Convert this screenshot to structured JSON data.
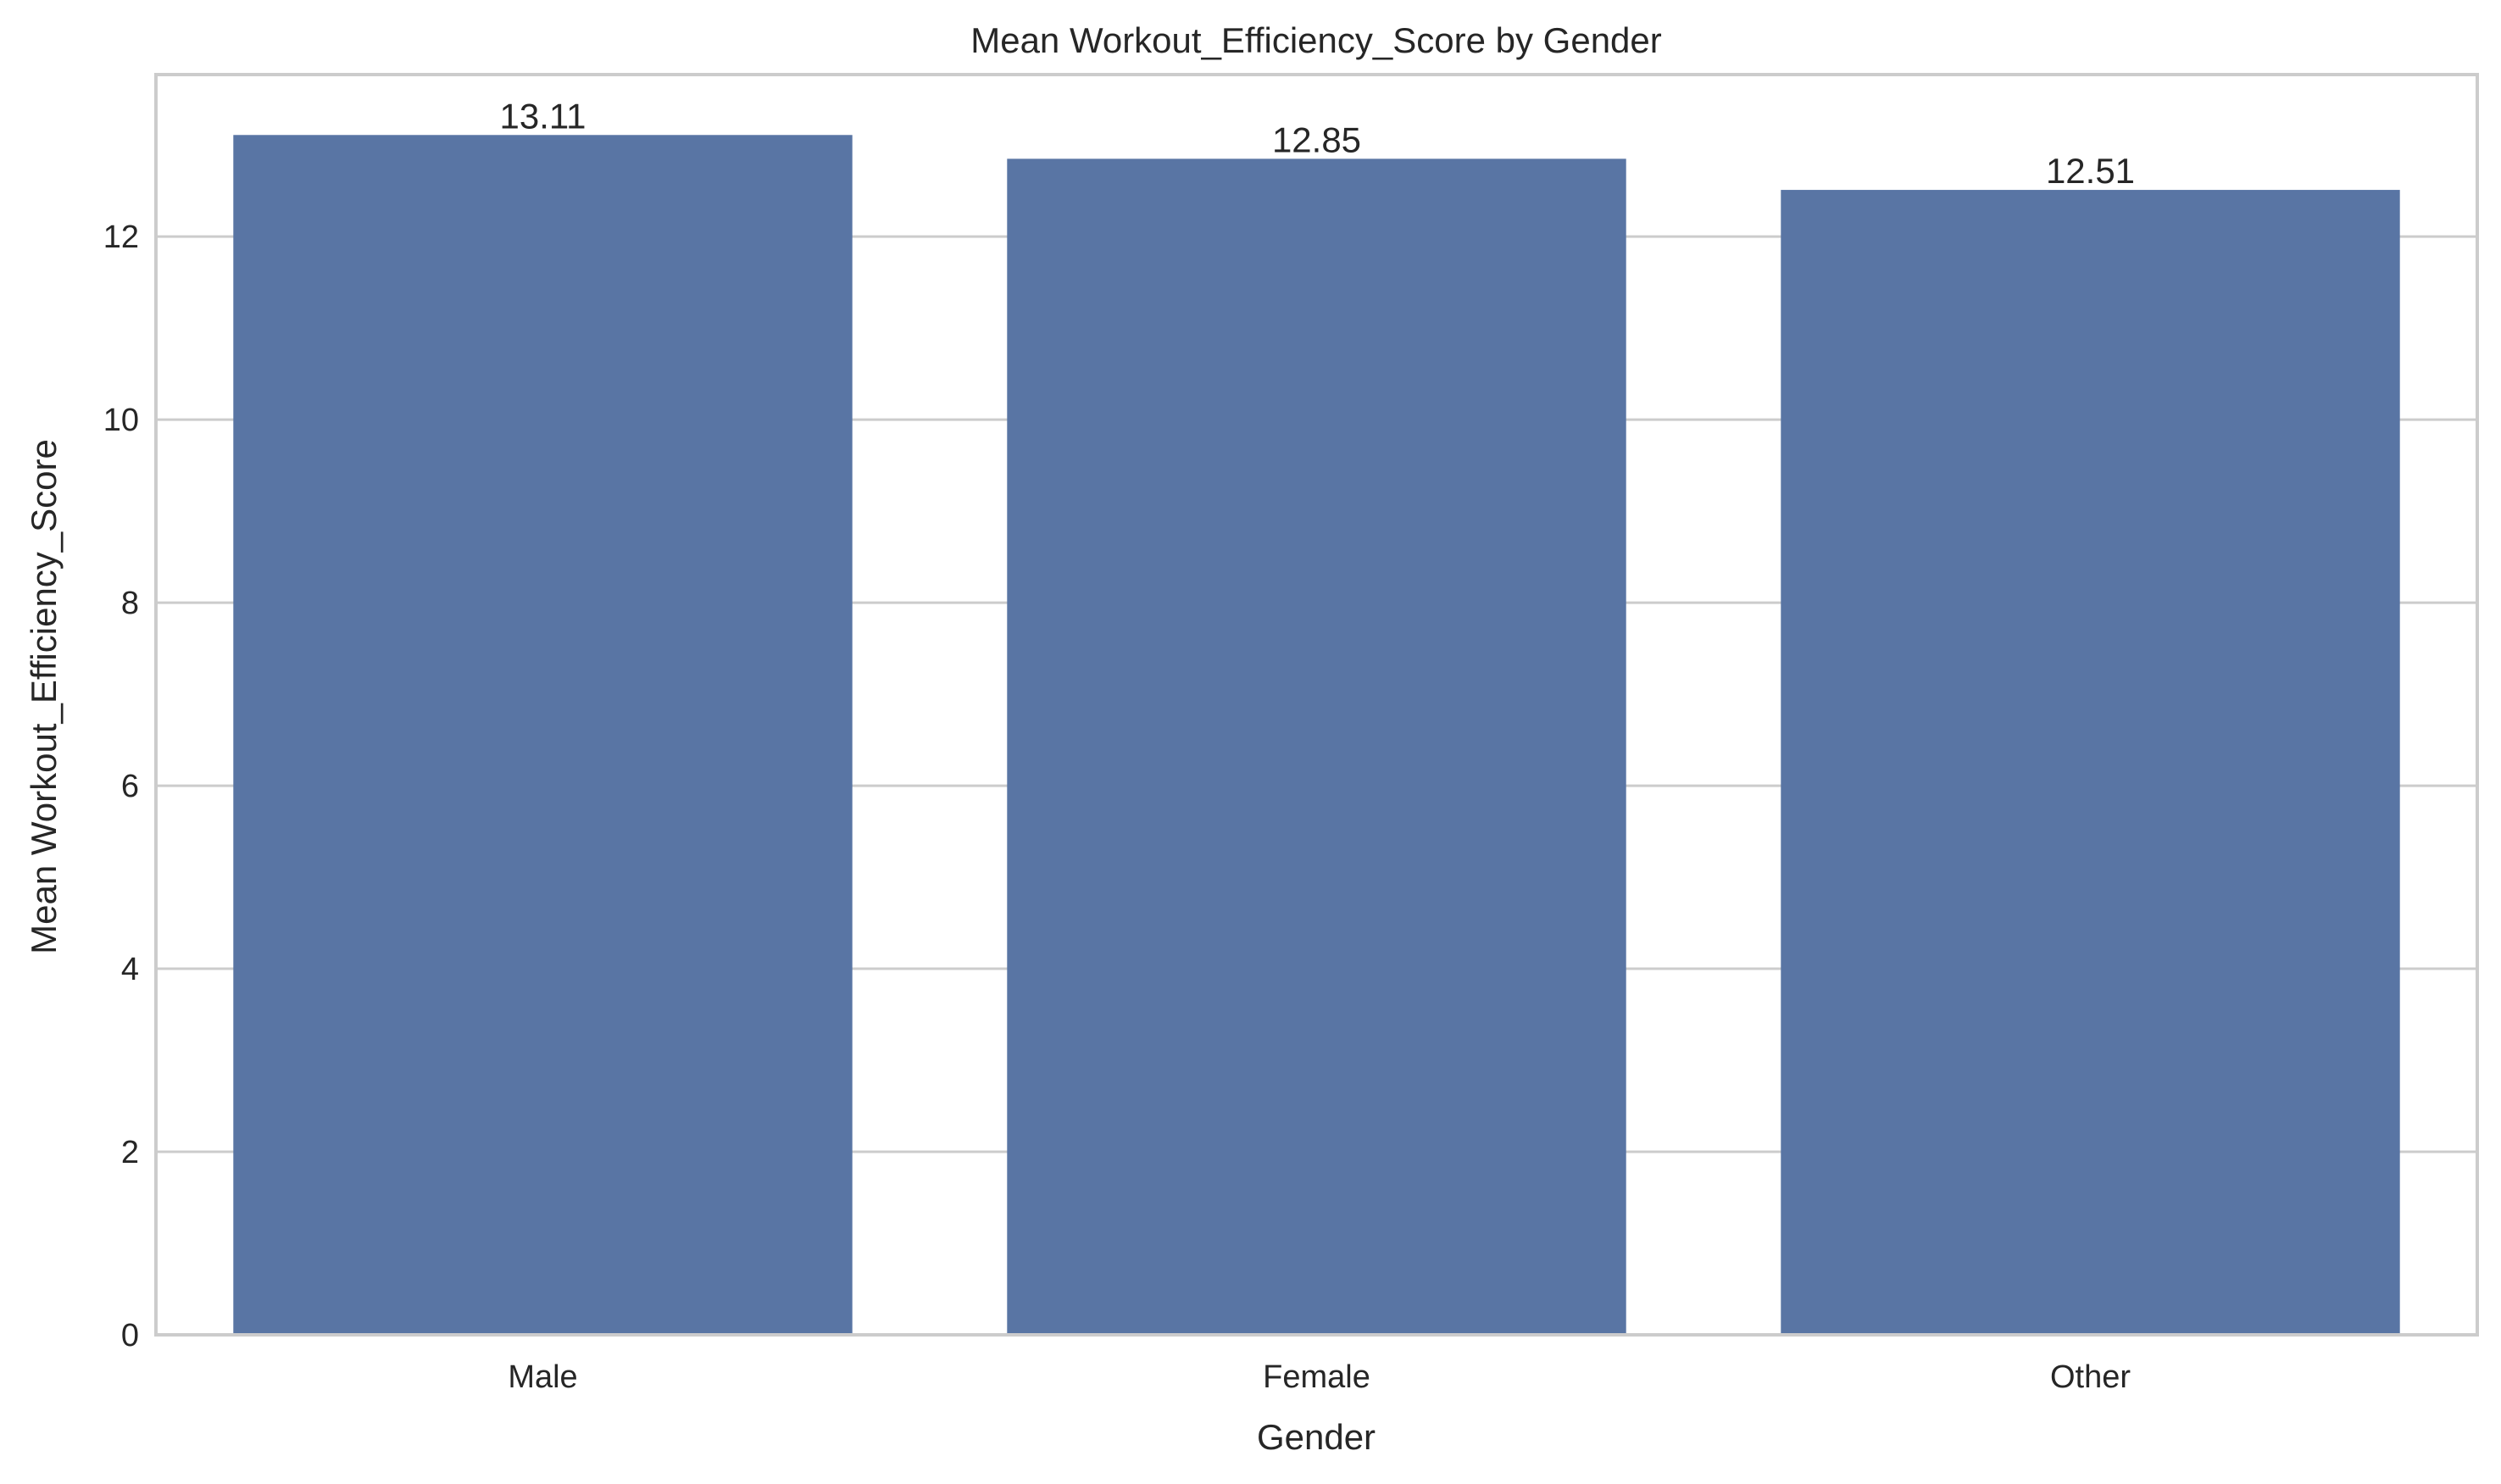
{
  "chart_data": {
    "type": "bar",
    "title": "Mean Workout_Efficiency_Score by Gender",
    "xlabel": "Gender",
    "ylabel": "Mean Workout_Efficiency_Score",
    "categories": [
      "Male",
      "Female",
      "Other"
    ],
    "values": [
      13.11,
      12.85,
      12.51
    ],
    "data_labels": [
      "13.11",
      "12.85",
      "12.51"
    ],
    "yticks": [
      0,
      2,
      4,
      6,
      8,
      10,
      12
    ],
    "ylim": [
      0,
      13.77
    ],
    "grid": "horizontal",
    "legend": "none",
    "colors": {
      "bar": "#5975a4",
      "grid": "#cccccc",
      "frame": "#cccccc",
      "text": "#262626",
      "background": "#ffffff"
    }
  }
}
